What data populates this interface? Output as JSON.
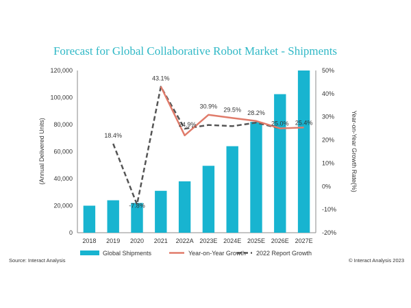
{
  "chart_data": {
    "type": "bar",
    "title": "Forecast for Global Collaborative Robot Market - Shipments",
    "ylabel": "(Annual Delivered Units)",
    "y2label": "Year-on-Year Growth Rate(%)",
    "categories": [
      "2018",
      "2019",
      "2020",
      "2021",
      "2022A",
      "2023E",
      "2024E",
      "2025E",
      "2026E",
      "2027E"
    ],
    "ylim": [
      0,
      120000
    ],
    "y_ticks": [
      0,
      20000,
      40000,
      60000,
      80000,
      100000,
      120000
    ],
    "y_tick_labels": [
      "0",
      "20,000",
      "40,000",
      "60,000",
      "80,000",
      "100,000",
      "120,000"
    ],
    "y2lim": [
      -20,
      50
    ],
    "y2_ticks": [
      -20,
      -10,
      0,
      10,
      20,
      30,
      40,
      50
    ],
    "y2_tick_labels": [
      "-20%",
      "-10%",
      "0%",
      "10%",
      "20%",
      "30%",
      "40%",
      "50%"
    ],
    "series": [
      {
        "name": "Global Shipments",
        "type": "bar",
        "axis": "left",
        "color": "#18b4d0",
        "values": [
          20000,
          24000,
          22000,
          31000,
          38000,
          49500,
          64000,
          82000,
          102500,
          120000
        ]
      },
      {
        "name": "Year-on-Year Growth",
        "type": "line",
        "axis": "right",
        "color": "#e07b6a",
        "values": [
          null,
          null,
          null,
          43.1,
          22.0,
          30.9,
          29.5,
          28.2,
          25.0,
          25.4
        ],
        "labels": [
          null,
          null,
          null,
          "43.1%",
          null,
          "30.9%",
          "29.5%",
          "28.2%",
          "25.0%",
          "25.4%"
        ]
      },
      {
        "name": "2022 Report Growth",
        "type": "line",
        "axis": "right",
        "color": "#555555",
        "dashed": true,
        "values": [
          null,
          18.4,
          -7.8,
          43.0,
          24.9,
          26.5,
          26.0,
          27.5,
          25.0,
          null
        ],
        "labels": [
          null,
          "18.4%",
          "-7.8%",
          null,
          "24.9%",
          null,
          null,
          null,
          null,
          null
        ]
      }
    ],
    "grid": false,
    "legend_position": "bottom"
  },
  "footer": {
    "source": "Source: Interact Analysis",
    "copyright": "© Interact Analysis 2023"
  }
}
